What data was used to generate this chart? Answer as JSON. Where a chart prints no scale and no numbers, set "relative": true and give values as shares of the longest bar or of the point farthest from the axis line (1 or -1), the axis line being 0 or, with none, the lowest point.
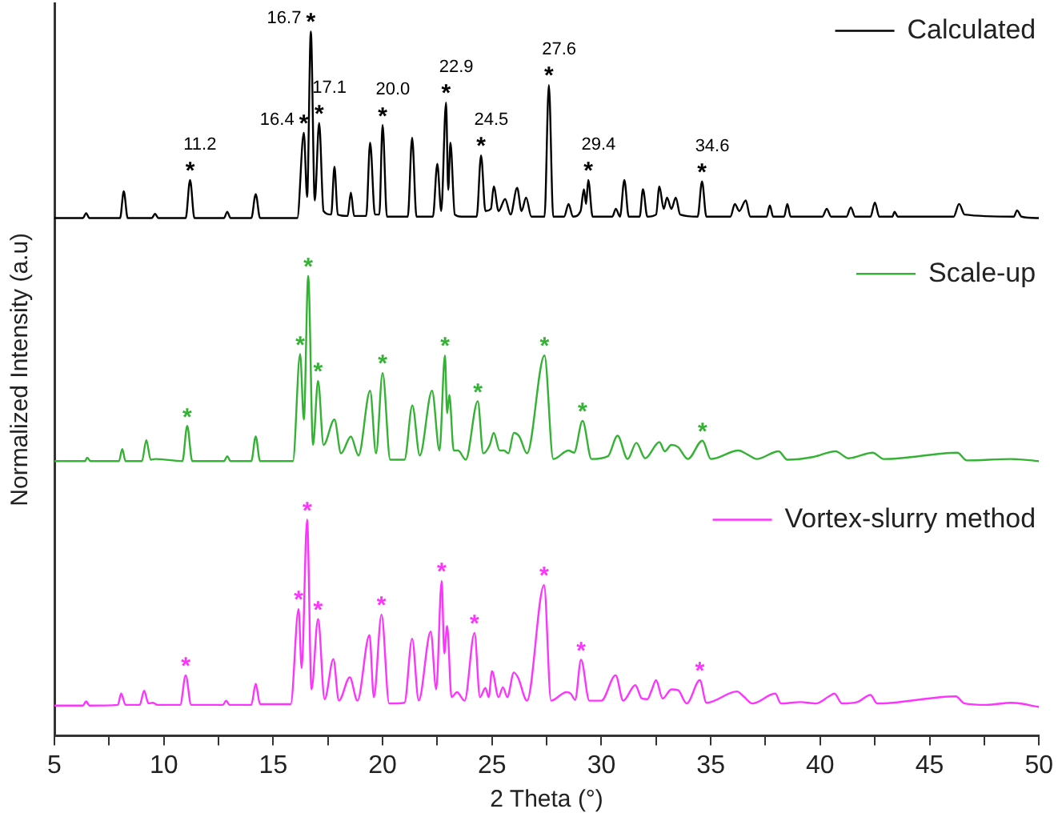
{
  "chart_data": {
    "type": "line",
    "relative": true,
    "xlabel": "2 Theta (°)",
    "ylabel": "Normalized Intensity (a.u)",
    "xlim": [
      5,
      50
    ],
    "xticks": [
      5,
      {
        "value": 7.5,
        "label": null
      },
      10,
      {
        "value": 12.5,
        "label": null
      },
      15,
      {
        "value": 17.5,
        "label": null
      },
      20,
      {
        "value": 22.5,
        "label": null
      },
      25,
      {
        "value": 27.5,
        "label": null
      },
      30,
      {
        "value": 32.5,
        "label": null
      },
      35,
      {
        "value": 37.5,
        "label": null
      },
      40,
      {
        "value": 42.5,
        "label": null
      },
      45,
      {
        "value": 47.5,
        "label": null
      },
      50
    ],
    "series": [
      {
        "name": "Calculated",
        "color": "#000000",
        "x": [
          5,
          6.3,
          6.45,
          6.6,
          8.0,
          8.17,
          8.35,
          9.45,
          9.6,
          9.75,
          11.0,
          11.2,
          11.4,
          12.75,
          12.9,
          13.05,
          14.0,
          14.2,
          14.4,
          16.1,
          16.4,
          16.55,
          16.72,
          16.9,
          17.1,
          17.3,
          17.65,
          17.8,
          17.95,
          18.4,
          18.55,
          18.7,
          19.25,
          19.43,
          19.65,
          19.85,
          20.0,
          20.2,
          21.15,
          21.35,
          21.55,
          22.3,
          22.5,
          22.68,
          22.9,
          23.0,
          23.1,
          23.3,
          23.6,
          24.3,
          24.5,
          24.7,
          24.95,
          25.08,
          25.3,
          25.6,
          25.85,
          26.15,
          26.35,
          26.56,
          26.8,
          27.4,
          27.6,
          27.8,
          28.3,
          28.5,
          28.7,
          29.05,
          29.2,
          29.3,
          29.4,
          29.6,
          30.5,
          30.66,
          30.85,
          31.05,
          31.25,
          31.75,
          31.9,
          32.1,
          32.5,
          32.65,
          32.85,
          33.0,
          33.2,
          33.4,
          33.6,
          34.4,
          34.6,
          34.8,
          35.9,
          36.1,
          36.3,
          36.6,
          36.8,
          37.55,
          37.7,
          37.85,
          38.35,
          38.5,
          38.65,
          40.1,
          40.3,
          40.5,
          41.2,
          41.4,
          41.6,
          42.3,
          42.5,
          42.7,
          43.3,
          43.4,
          43.55,
          46.1,
          46.35,
          46.6,
          48.85,
          49.0,
          49.2,
          50
        ],
        "values": [
          0.735,
          0.735,
          0.742,
          0.735,
          0.735,
          0.773,
          0.735,
          0.735,
          0.741,
          0.735,
          0.735,
          0.789,
          0.735,
          0.735,
          0.744,
          0.735,
          0.735,
          0.769,
          0.735,
          0.735,
          0.856,
          0.765,
          1.0,
          0.76,
          0.87,
          0.745,
          0.74,
          0.808,
          0.74,
          0.738,
          0.771,
          0.738,
          0.738,
          0.842,
          0.74,
          0.74,
          0.867,
          0.737,
          0.737,
          0.849,
          0.737,
          0.737,
          0.812,
          0.745,
          0.899,
          0.775,
          0.842,
          0.74,
          0.737,
          0.737,
          0.824,
          0.745,
          0.748,
          0.78,
          0.745,
          0.762,
          0.74,
          0.778,
          0.745,
          0.764,
          0.737,
          0.737,
          0.924,
          0.737,
          0.737,
          0.755,
          0.737,
          0.745,
          0.776,
          0.755,
          0.789,
          0.737,
          0.737,
          0.748,
          0.737,
          0.789,
          0.737,
          0.737,
          0.776,
          0.737,
          0.74,
          0.78,
          0.748,
          0.764,
          0.748,
          0.764,
          0.74,
          0.737,
          0.787,
          0.737,
          0.737,
          0.755,
          0.745,
          0.76,
          0.737,
          0.737,
          0.753,
          0.737,
          0.737,
          0.755,
          0.737,
          0.737,
          0.748,
          0.737,
          0.737,
          0.75,
          0.737,
          0.737,
          0.757,
          0.737,
          0.737,
          0.744,
          0.737,
          0.737,
          0.755,
          0.74,
          0.737,
          0.746,
          0.737,
          0.735
        ]
      },
      {
        "name": "Scale-up",
        "color": "#33b233",
        "x": [
          5,
          6.4,
          6.5,
          6.65,
          7.95,
          8.1,
          8.25,
          9.0,
          9.2,
          9.4,
          9.6,
          10.85,
          11.07,
          11.3,
          12.75,
          12.9,
          13.05,
          14.0,
          14.2,
          14.4,
          15.9,
          16.23,
          16.4,
          16.6,
          16.82,
          17.05,
          17.3,
          17.8,
          18.1,
          18.55,
          18.9,
          19.43,
          19.7,
          20.0,
          20.35,
          21.0,
          21.36,
          21.7,
          22.26,
          22.6,
          22.85,
          22.95,
          23.05,
          23.25,
          23.45,
          23.8,
          24.35,
          24.6,
          24.9,
          25.08,
          25.35,
          25.55,
          25.75,
          26.0,
          26.25,
          26.6,
          27.4,
          27.8,
          28.5,
          28.75,
          29.14,
          29.55,
          30.3,
          30.74,
          31.2,
          31.6,
          32.0,
          32.65,
          32.9,
          33.2,
          33.5,
          33.95,
          34.62,
          35.0,
          36.27,
          36.7,
          37.1,
          38.1,
          38.5,
          39.7,
          40.7,
          41.3,
          42.4,
          42.9,
          43.6,
          46.27,
          46.7,
          48.7,
          50
        ],
        "values": [
          0.39,
          0.39,
          0.395,
          0.39,
          0.39,
          0.407,
          0.39,
          0.39,
          0.42,
          0.392,
          0.393,
          0.39,
          0.44,
          0.39,
          0.39,
          0.397,
          0.39,
          0.39,
          0.425,
          0.39,
          0.39,
          0.542,
          0.449,
          0.653,
          0.413,
          0.504,
          0.413,
          0.449,
          0.401,
          0.425,
          0.398,
          0.49,
          0.401,
          0.515,
          0.392,
          0.392,
          0.469,
          0.398,
          0.49,
          0.405,
          0.54,
          0.458,
          0.484,
          0.405,
          0.405,
          0.392,
          0.475,
          0.401,
          0.413,
          0.43,
          0.405,
          0.405,
          0.401,
          0.43,
          0.425,
          0.401,
          0.54,
          0.393,
          0.405,
          0.402,
          0.447,
          0.393,
          0.397,
          0.426,
          0.393,
          0.416,
          0.394,
          0.417,
          0.404,
          0.413,
          0.41,
          0.393,
          0.419,
          0.393,
          0.405,
          0.399,
          0.393,
          0.404,
          0.392,
          0.396,
          0.404,
          0.394,
          0.402,
          0.393,
          0.394,
          0.402,
          0.391,
          0.393,
          0.39
        ]
      },
      {
        "name": "Vortex-slurry method",
        "color": "#ff33ff",
        "x": [
          5,
          6.3,
          6.45,
          6.6,
          7.9,
          8.05,
          8.25,
          8.9,
          9.1,
          9.3,
          9.5,
          9.7,
          10.75,
          11.0,
          11.25,
          12.7,
          12.85,
          13.0,
          14.0,
          14.2,
          14.4,
          15.8,
          16.16,
          16.3,
          16.55,
          16.75,
          17.05,
          17.35,
          17.75,
          18.0,
          18.5,
          18.85,
          19.4,
          19.6,
          19.95,
          20.3,
          21.0,
          21.35,
          21.65,
          22.2,
          22.45,
          22.7,
          22.82,
          22.95,
          23.15,
          23.4,
          23.75,
          24.2,
          24.45,
          24.7,
          24.85,
          25.0,
          25.3,
          25.5,
          25.7,
          26.0,
          26.2,
          26.6,
          27.38,
          27.7,
          28.4,
          28.6,
          28.8,
          29.07,
          29.45,
          30.0,
          30.65,
          31.0,
          31.55,
          31.85,
          32.1,
          32.3,
          32.5,
          32.8,
          33.2,
          33.5,
          33.9,
          34.5,
          34.8,
          36.2,
          36.5,
          36.9,
          37.95,
          38.2,
          39.1,
          39.8,
          40.4,
          40.65,
          41.0,
          41.7,
          42.3,
          42.6,
          43.3,
          46.2,
          46.6,
          47.6,
          48.75,
          50
        ],
        "values": [
          0.043,
          0.043,
          0.049,
          0.043,
          0.044,
          0.06,
          0.044,
          0.044,
          0.064,
          0.046,
          0.047,
          0.044,
          0.044,
          0.086,
          0.044,
          0.044,
          0.05,
          0.044,
          0.044,
          0.074,
          0.045,
          0.045,
          0.18,
          0.096,
          0.307,
          0.066,
          0.166,
          0.052,
          0.109,
          0.05,
          0.083,
          0.05,
          0.143,
          0.055,
          0.172,
          0.046,
          0.047,
          0.138,
          0.05,
          0.148,
          0.066,
          0.22,
          0.117,
          0.156,
          0.055,
          0.062,
          0.05,
          0.146,
          0.055,
          0.068,
          0.055,
          0.092,
          0.055,
          0.069,
          0.055,
          0.09,
          0.082,
          0.05,
          0.214,
          0.05,
          0.062,
          0.06,
          0.051,
          0.108,
          0.05,
          0.05,
          0.086,
          0.05,
          0.072,
          0.053,
          0.052,
          0.065,
          0.079,
          0.053,
          0.066,
          0.065,
          0.046,
          0.079,
          0.047,
          0.063,
          0.056,
          0.046,
          0.06,
          0.046,
          0.048,
          0.046,
          0.056,
          0.06,
          0.046,
          0.048,
          0.058,
          0.046,
          0.047,
          0.056,
          0.046,
          0.044,
          0.047,
          0.041
        ]
      }
    ],
    "legend": "right",
    "annotations": [
      {
        "text": "*",
        "x": 11.2,
        "y": 0.789
      },
      {
        "text": "11.2",
        "x": 11.2,
        "y": 0.789
      },
      {
        "text": "*",
        "x": 16.4,
        "y": 0.856
      },
      {
        "text": "16.4",
        "x": 16.4,
        "y": 0.856
      },
      {
        "text": "*",
        "x": 16.72,
        "y": 1.0
      },
      {
        "text": "16.7",
        "x": 16.72,
        "y": 1.0
      },
      {
        "text": "*",
        "x": 17.1,
        "y": 0.87
      },
      {
        "text": "17.1",
        "x": 17.1,
        "y": 0.87
      },
      {
        "text": "*",
        "x": 20.0,
        "y": 0.867
      },
      {
        "text": "20.0",
        "x": 20.0,
        "y": 0.867
      },
      {
        "text": "*",
        "x": 22.9,
        "y": 0.899
      },
      {
        "text": "22.9",
        "x": 22.9,
        "y": 0.899
      },
      {
        "text": "*",
        "x": 24.5,
        "y": 0.824
      },
      {
        "text": "24.5",
        "x": 24.5,
        "y": 0.824
      },
      {
        "text": "*",
        "x": 27.6,
        "y": 0.924
      },
      {
        "text": "27.6",
        "x": 27.6,
        "y": 0.924
      },
      {
        "text": "*",
        "x": 29.4,
        "y": 0.789
      },
      {
        "text": "29.4",
        "x": 29.4,
        "y": 0.789
      },
      {
        "text": "*",
        "x": 34.6,
        "y": 0.787
      },
      {
        "text": "34.6",
        "x": 34.6,
        "y": 0.787
      },
      {
        "text": "*",
        "x": 11.07,
        "y": 0.44
      },
      {
        "text": "*",
        "x": 16.23,
        "y": 0.542
      },
      {
        "text": "*",
        "x": 16.6,
        "y": 0.653
      },
      {
        "text": "*",
        "x": 17.05,
        "y": 0.504
      },
      {
        "text": "*",
        "x": 20.0,
        "y": 0.515
      },
      {
        "text": "*",
        "x": 22.85,
        "y": 0.54
      },
      {
        "text": "*",
        "x": 24.35,
        "y": 0.475
      },
      {
        "text": "*",
        "x": 27.4,
        "y": 0.54
      },
      {
        "text": "*",
        "x": 29.14,
        "y": 0.447
      },
      {
        "text": "*",
        "x": 34.62,
        "y": 0.419
      },
      {
        "text": "*",
        "x": 11.0,
        "y": 0.086
      },
      {
        "text": "*",
        "x": 16.16,
        "y": 0.18
      },
      {
        "text": "*",
        "x": 16.55,
        "y": 0.307
      },
      {
        "text": "*",
        "x": 17.05,
        "y": 0.166
      },
      {
        "text": "*",
        "x": 19.95,
        "y": 0.172
      },
      {
        "text": "*",
        "x": 22.7,
        "y": 0.22
      },
      {
        "text": "*",
        "x": 24.2,
        "y": 0.146
      },
      {
        "text": "*",
        "x": 27.38,
        "y": 0.214
      },
      {
        "text": "*",
        "x": 29.07,
        "y": 0.108
      },
      {
        "text": "*",
        "x": 34.5,
        "y": 0.079
      }
    ]
  }
}
